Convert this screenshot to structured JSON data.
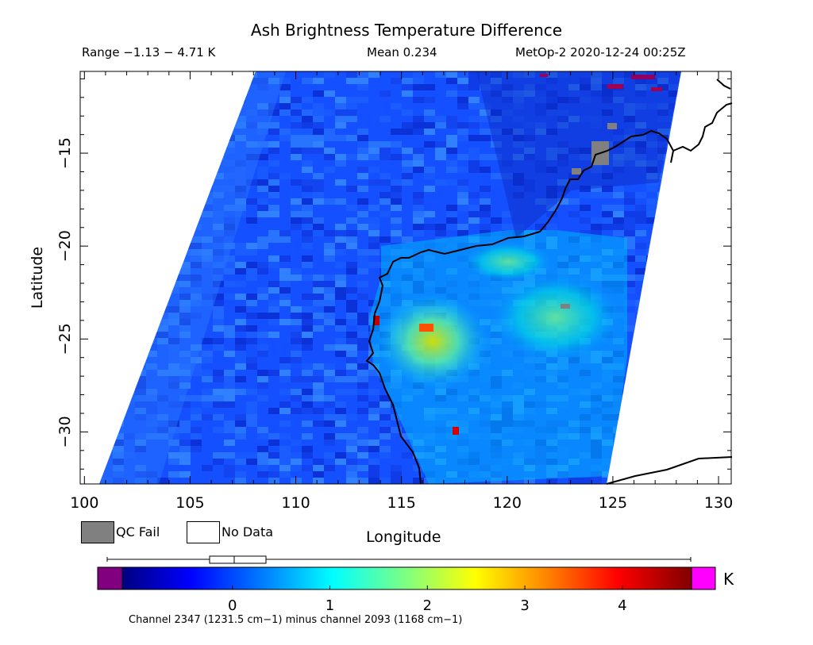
{
  "title": "Ash Brightness Temperature Difference",
  "range_text": "Range −1.13 − 4.71 K",
  "mean_text": "Mean 0.234",
  "satellite_text": "MetOp-2 2020-12-24 00:25Z",
  "x_axis": {
    "label": "Longitude",
    "ticks": [
      "100",
      "105",
      "110",
      "115",
      "120",
      "125",
      "130"
    ],
    "range": [
      99.8,
      130.6
    ]
  },
  "y_axis": {
    "label": "Latitude",
    "ticks": [
      "−15",
      "−20",
      "−25",
      "−30"
    ],
    "range": [
      -32.8,
      -10.6
    ]
  },
  "legend": {
    "qc_fail": "QC Fail",
    "no_data": "No Data",
    "qc_color": "#808080"
  },
  "colorbar": {
    "unit": "K",
    "ticks": [
      "0",
      "1",
      "2",
      "3",
      "4"
    ],
    "range": [
      -1.13,
      4.71
    ],
    "underflow_color": "#800080",
    "overflow_color": "#ff00ff",
    "colors": [
      "#000080",
      "#0000ff",
      "#0080ff",
      "#00ffff",
      "#80ff80",
      "#ffff00",
      "#ff8000",
      "#ff0000",
      "#800000"
    ],
    "box_plot": {
      "whisker_low": -1.13,
      "q1": -0.2,
      "median": 0.15,
      "q3": 0.45,
      "whisker_high": 4.71
    }
  },
  "caption": "Channel 2347 (1231.5 cm−1) minus channel 2093 (1168 cm−1)",
  "colors": {
    "swath_base": "#1450ff",
    "coastline": "#000000"
  }
}
